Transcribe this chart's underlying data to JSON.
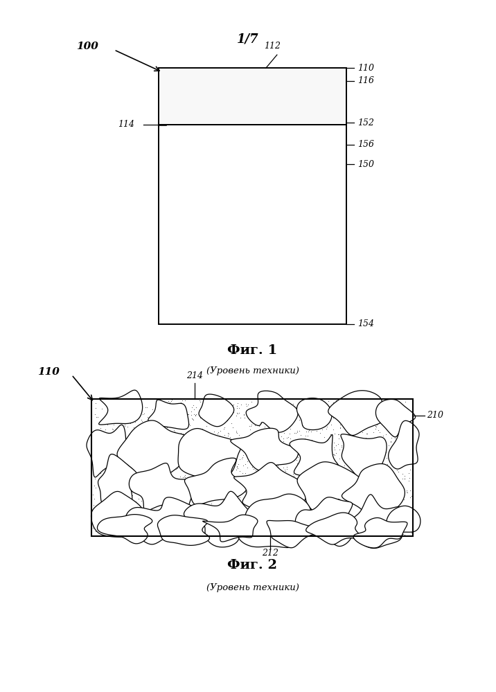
{
  "page_label": "1/7",
  "fig1_title": "Фиг. 1",
  "fig1_subtitle": "(Уровень техники)",
  "fig2_title": "Фиг. 2",
  "fig2_subtitle": "(Уровень техники)",
  "bg_color": "#ffffff",
  "lc": "#000000",
  "label_100": "100",
  "label_110_1": "110",
  "label_112": "112",
  "label_114": "114",
  "label_116": "116",
  "label_150": "150",
  "label_152": "152",
  "label_154": "154",
  "label_156": "156",
  "label_110_2": "110",
  "label_210": "210",
  "label_212": "212",
  "label_214": "214"
}
